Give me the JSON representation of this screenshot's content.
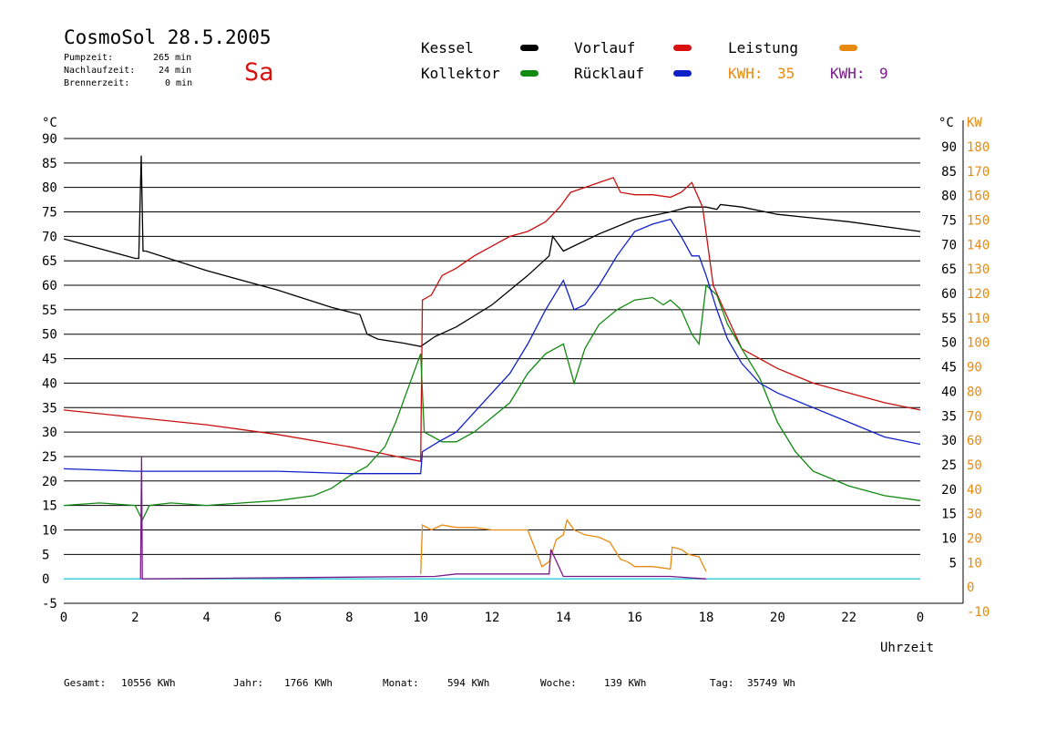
{
  "header": {
    "title": "CosmoSol 28.5.2005",
    "pumpzeit_label": "Pumpzeit:",
    "pumpzeit_value": "265 min",
    "nachlaufzeit_label": "Nachlaufzeit:",
    "nachlaufzeit_value": "24 min",
    "brennerzeit_label": "Brennerzeit:",
    "brennerzeit_value": "0 min",
    "day": "Sa"
  },
  "legend": {
    "items": [
      {
        "label": "Kessel",
        "color": "#000000"
      },
      {
        "label": "Kollektor",
        "color": "#118a11"
      },
      {
        "label": "Vorlauf",
        "color": "#d81010"
      },
      {
        "label": "Rücklauf",
        "color": "#1020c8"
      },
      {
        "label": "Leistung",
        "color": "#e88a10"
      }
    ],
    "kwh1_label": "KWH:",
    "kwh1_value": "35",
    "kwh2_label": "KWH:",
    "kwh2_value": "9"
  },
  "footer": {
    "gesamt_label": "Gesamt:",
    "gesamt_value": "10556 KWh",
    "jahr_label": "Jahr:",
    "jahr_value": "1766 KWh",
    "monat_label": "Monat:",
    "monat_value": "594 KWh",
    "woche_label": "Woche:",
    "woche_value": "139 KWh",
    "tag_label": "Tag:",
    "tag_value": "35749 Wh"
  },
  "chart_data": {
    "type": "line",
    "xlabel": "Uhrzeit",
    "ylabel_left": "°C",
    "ylabel_right": "KW",
    "xlim": [
      0,
      24
    ],
    "ylim": [
      -5,
      90
    ],
    "ylim_right": [
      -10,
      180
    ],
    "x_ticks": [
      "0",
      "2",
      "4",
      "6",
      "8",
      "10",
      "12",
      "14",
      "16",
      "18",
      "20",
      "22",
      "0"
    ],
    "y_ticks_left": [
      "90",
      "85",
      "80",
      "75",
      "70",
      "65",
      "60",
      "55",
      "50",
      "45",
      "40",
      "35",
      "30",
      "25",
      "20",
      "15",
      "10",
      "5",
      "0",
      "-5"
    ],
    "y_ticks_right_c": [
      "90",
      "85",
      "80",
      "75",
      "70",
      "65",
      "60",
      "55",
      "50",
      "45",
      "40",
      "35",
      "30",
      "25",
      "20",
      "15",
      "10",
      "5"
    ],
    "y_ticks_right_kw": [
      "180",
      "170",
      "160",
      "150",
      "140",
      "130",
      "120",
      "110",
      "100",
      "90",
      "80",
      "70",
      "60",
      "50",
      "40",
      "30",
      "20",
      "10",
      "0",
      "-10"
    ],
    "grid": true,
    "series": [
      {
        "name": "Kessel",
        "color": "#000000",
        "x": [
          0,
          2.0,
          2.1,
          2.17,
          2.22,
          2.3,
          4,
          6,
          7.5,
          8.3,
          8.5,
          8.8,
          9.5,
          10.0,
          10.4,
          11,
          12,
          13,
          13.6,
          13.7,
          14,
          15,
          16,
          17,
          17.5,
          18,
          18.3,
          18.4,
          19,
          20,
          22,
          24
        ],
        "y": [
          69.5,
          65.5,
          65.5,
          86.5,
          67,
          67,
          63,
          59,
          55.5,
          54,
          50,
          49,
          48.2,
          47.5,
          49.5,
          51.5,
          56,
          62,
          66,
          70,
          67,
          70.5,
          73.5,
          75,
          76,
          76,
          75.5,
          76.5,
          76,
          74.5,
          73,
          71
        ]
      },
      {
        "name": "Vorlauf",
        "color": "#c81010",
        "x": [
          0,
          2,
          4,
          6,
          8,
          9,
          10.0,
          10.05,
          10.3,
          10.6,
          11,
          11.5,
          12,
          12.5,
          13,
          13.5,
          13.9,
          14.2,
          14.6,
          15,
          15.4,
          15.6,
          16,
          16.5,
          17,
          17.3,
          17.6,
          17.9,
          18.2,
          18.5,
          19,
          20,
          21,
          22,
          23,
          24
        ],
        "y": [
          34.5,
          33,
          31.5,
          29.5,
          27,
          25.5,
          24,
          57,
          58,
          62,
          63.5,
          66,
          68,
          70,
          71,
          73,
          76,
          79,
          80,
          81,
          82,
          79,
          78.5,
          78.5,
          78,
          79,
          81,
          76,
          60,
          55,
          47,
          43,
          40,
          38,
          36,
          34.5
        ]
      },
      {
        "name": "Kollektor",
        "color": "#118a11",
        "x": [
          0,
          1,
          2,
          2.2,
          2.4,
          3,
          4,
          5,
          6,
          7,
          7.5,
          8,
          8.5,
          9,
          9.3,
          9.6,
          9.9,
          10.0,
          10.1,
          10.6,
          11,
          11.5,
          12,
          12.5,
          13,
          13.5,
          14,
          14.3,
          14.6,
          15,
          15.5,
          16,
          16.5,
          16.8,
          17,
          17.3,
          17.6,
          17.8,
          18,
          18.3,
          18.6,
          19,
          19.5,
          20,
          20.5,
          21,
          22,
          23,
          24
        ],
        "y": [
          15,
          15.5,
          15,
          12,
          15,
          15.5,
          15,
          15.5,
          16,
          17,
          18.5,
          21,
          23,
          27,
          32,
          38,
          44,
          46,
          30,
          28,
          28,
          30,
          33,
          36,
          42,
          46,
          48,
          40,
          47,
          52,
          55,
          57,
          57.5,
          56,
          57,
          55,
          50,
          48,
          60,
          58,
          52,
          47,
          41,
          32,
          26,
          22,
          19,
          17,
          16
        ]
      },
      {
        "name": "Rücklauf",
        "color": "#1020c8",
        "x": [
          0,
          2,
          4,
          6,
          8,
          10.0,
          10.05,
          10.5,
          11,
          11.5,
          12,
          12.5,
          13,
          13.5,
          14,
          14.3,
          14.6,
          15,
          15.5,
          16,
          16.5,
          17,
          17.3,
          17.6,
          17.8,
          18,
          18.3,
          18.6,
          19,
          19.5,
          20,
          21,
          22,
          23,
          24
        ],
        "y": [
          22.5,
          22,
          22,
          22,
          21.5,
          21.5,
          26,
          28,
          30,
          34,
          38,
          42,
          48,
          55,
          61,
          55,
          56,
          60,
          66,
          71,
          72.5,
          73.5,
          70,
          66,
          66,
          62,
          55,
          49,
          44,
          40,
          38,
          35,
          32,
          29,
          27.5
        ]
      },
      {
        "name": "Leistung",
        "color": "#e88a10",
        "x": [
          10.0,
          10.05,
          10.3,
          10.6,
          11,
          11.5,
          12,
          12.5,
          13,
          13.4,
          13.6,
          13.8,
          14,
          14.1,
          14.3,
          14.6,
          15,
          15.3,
          15.6,
          15.8,
          16,
          16.5,
          17,
          17.05,
          17.3,
          17.5,
          17.8,
          18
        ],
        "kw": [
          2,
          22,
          20,
          22,
          21,
          21,
          20,
          20,
          20,
          5,
          7,
          16,
          18,
          24,
          20,
          18,
          17,
          15,
          8,
          7,
          5,
          5,
          4,
          13,
          12,
          10,
          9,
          3
        ]
      },
      {
        "name": "KWH 9",
        "color": "#7a1a8a",
        "x": [
          2.15,
          2.18,
          2.2,
          10.4,
          11,
          12,
          13,
          13.6,
          13.65,
          14,
          15,
          16,
          17,
          18
        ],
        "kw": [
          0,
          50,
          0,
          1,
          2,
          2,
          2,
          2,
          12,
          1,
          1,
          1,
          1,
          0
        ]
      }
    ]
  }
}
